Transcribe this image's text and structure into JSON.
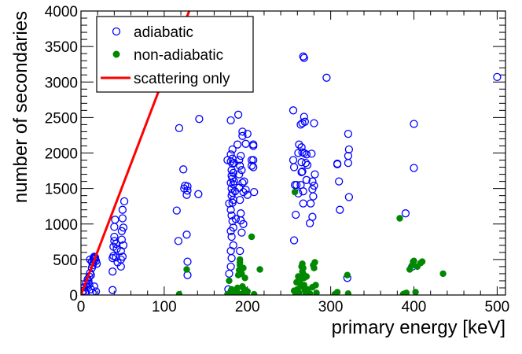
{
  "chart_data": {
    "type": "scatter",
    "xlabel": "primary energy [keV]",
    "ylabel": "number of secondaries",
    "xlim": [
      0,
      510
    ],
    "ylim": [
      0,
      4000
    ],
    "x_major_ticks": [
      0,
      100,
      200,
      300,
      400,
      500
    ],
    "y_major_ticks": [
      0,
      500,
      1000,
      1500,
      2000,
      2500,
      3000,
      3500,
      4000
    ],
    "x_tick_labels": [
      "0",
      "100",
      "200",
      "300",
      "400",
      "500"
    ],
    "y_tick_labels": [
      "0",
      "500",
      "1000",
      "1500",
      "2000",
      "2500",
      "3000",
      "3500",
      "4000"
    ],
    "legend": {
      "position": "top-left",
      "entries": [
        {
          "label": "adiabatic",
          "marker": "open-circle",
          "color": "#0000ff"
        },
        {
          "label": "non-adiabatic",
          "marker": "filled-circle",
          "color": "#008800"
        },
        {
          "label": "scattering only",
          "marker": "line",
          "color": "#ff0000"
        }
      ]
    },
    "series": [
      {
        "name": "adiabatic",
        "color": "#0000ff",
        "marker": "open-circle",
        "points": [
          [
            2,
            20
          ],
          [
            3,
            60
          ],
          [
            4,
            110
          ],
          [
            5,
            40
          ],
          [
            6,
            160
          ],
          [
            7,
            120
          ],
          [
            8,
            220
          ],
          [
            9,
            200
          ],
          [
            10,
            260
          ],
          [
            11,
            310
          ],
          [
            12,
            280
          ],
          [
            13,
            380
          ],
          [
            14,
            420
          ],
          [
            15,
            460
          ],
          [
            16,
            500
          ],
          [
            17,
            530
          ],
          [
            18,
            480
          ],
          [
            12,
            80
          ],
          [
            14,
            30
          ],
          [
            16,
            120
          ],
          [
            18,
            50
          ],
          [
            11,
            500
          ],
          [
            13,
            470
          ],
          [
            15,
            520
          ],
          [
            16,
            540
          ],
          [
            17,
            510
          ],
          [
            19,
            440
          ],
          [
            10,
            150
          ],
          [
            38,
            70
          ],
          [
            38,
            330
          ],
          [
            38,
            520
          ],
          [
            39,
            550
          ],
          [
            39,
            680
          ],
          [
            40,
            760
          ],
          [
            40,
            820
          ],
          [
            40,
            960
          ],
          [
            41,
            1060
          ],
          [
            42,
            530
          ],
          [
            42,
            720
          ],
          [
            43,
            650
          ],
          [
            44,
            460
          ],
          [
            48,
            400
          ],
          [
            48,
            500
          ],
          [
            48,
            620
          ],
          [
            49,
            780
          ],
          [
            49,
            900
          ],
          [
            50,
            1080
          ],
          [
            50,
            1200
          ],
          [
            50,
            540
          ],
          [
            51,
            700
          ],
          [
            51,
            950
          ],
          [
            52,
            1320
          ],
          [
            115,
            1190
          ],
          [
            117,
            760
          ],
          [
            118,
            2350
          ],
          [
            123,
            1770
          ],
          [
            124,
            1500
          ],
          [
            125,
            1540
          ],
          [
            127,
            850
          ],
          [
            127,
            1410
          ],
          [
            128,
            1470
          ],
          [
            128,
            470
          ],
          [
            128,
            1530
          ],
          [
            128,
            280
          ],
          [
            141,
            1420
          ],
          [
            142,
            2480
          ],
          [
            176,
            1900
          ],
          [
            177,
            80
          ],
          [
            178,
            1290
          ],
          [
            178,
            300
          ],
          [
            180,
            2460
          ],
          [
            180,
            1980
          ],
          [
            180,
            1880
          ],
          [
            180,
            1580
          ],
          [
            180,
            1200
          ],
          [
            180,
            900
          ],
          [
            180,
            620
          ],
          [
            180,
            400
          ],
          [
            181,
            1760
          ],
          [
            181,
            1680
          ],
          [
            181,
            1500
          ],
          [
            181,
            1400
          ],
          [
            181,
            1120
          ],
          [
            181,
            820
          ],
          [
            181,
            520
          ],
          [
            181,
            50
          ],
          [
            182,
            2050
          ],
          [
            182,
            1920
          ],
          [
            182,
            1850
          ],
          [
            182,
            1640
          ],
          [
            182,
            1440
          ],
          [
            182,
            1300
          ],
          [
            182,
            1040
          ],
          [
            183,
            1720
          ],
          [
            183,
            1560
          ],
          [
            183,
            1340
          ],
          [
            183,
            950
          ],
          [
            183,
            700
          ],
          [
            184,
            1860
          ],
          [
            184,
            1600
          ],
          [
            185,
            1460
          ],
          [
            186,
            1070
          ],
          [
            188,
            2120
          ],
          [
            189,
            2540
          ],
          [
            190,
            1900
          ],
          [
            190,
            1700
          ],
          [
            190,
            1510
          ],
          [
            191,
            1820
          ],
          [
            191,
            1340
          ],
          [
            191,
            620
          ],
          [
            192,
            1960
          ],
          [
            192,
            1150
          ],
          [
            192,
            1050
          ],
          [
            193,
            1760
          ],
          [
            193,
            880
          ],
          [
            194,
            2240
          ],
          [
            194,
            2300
          ],
          [
            194,
            1580
          ],
          [
            195,
            1450
          ],
          [
            195,
            1000
          ],
          [
            196,
            1600
          ],
          [
            198,
            2130
          ],
          [
            198,
            1480
          ],
          [
            200,
            2270
          ],
          [
            200,
            1410
          ],
          [
            205,
            1900
          ],
          [
            205,
            1820
          ],
          [
            207,
            2120
          ],
          [
            207,
            2100
          ],
          [
            207,
            1900
          ],
          [
            207,
            1800
          ],
          [
            208,
            1450
          ],
          [
            255,
            2600
          ],
          [
            255,
            1900
          ],
          [
            256,
            1800
          ],
          [
            256,
            770
          ],
          [
            257,
            1550
          ],
          [
            258,
            1130
          ],
          [
            259,
            1550
          ],
          [
            261,
            2000
          ],
          [
            261,
            1430
          ],
          [
            262,
            2120
          ],
          [
            264,
            1550
          ],
          [
            264,
            2400
          ],
          [
            265,
            1870
          ],
          [
            265,
            2080
          ],
          [
            265,
            1730
          ],
          [
            266,
            2420
          ],
          [
            266,
            2010
          ],
          [
            266,
            1740
          ],
          [
            267,
            1460
          ],
          [
            267,
            1290
          ],
          [
            267,
            3360
          ],
          [
            268,
            3340
          ],
          [
            268,
            2510
          ],
          [
            268,
            2000
          ],
          [
            269,
            2440
          ],
          [
            270,
            1860
          ],
          [
            271,
            1980
          ],
          [
            271,
            1620
          ],
          [
            272,
            1830
          ],
          [
            275,
            1010
          ],
          [
            276,
            1290
          ],
          [
            277,
            1990
          ],
          [
            278,
            1600
          ],
          [
            278,
            1490
          ],
          [
            278,
            1100
          ],
          [
            279,
            1390
          ],
          [
            280,
            2420
          ],
          [
            280,
            1540
          ],
          [
            281,
            1700
          ],
          [
            295,
            3060
          ],
          [
            308,
            1850
          ],
          [
            308,
            1840
          ],
          [
            310,
            1600
          ],
          [
            311,
            1200
          ],
          [
            320,
            240
          ],
          [
            321,
            2270
          ],
          [
            321,
            1960
          ],
          [
            321,
            1860
          ],
          [
            322,
            2050
          ],
          [
            322,
            1380
          ],
          [
            390,
            1150
          ],
          [
            398,
            400
          ],
          [
            400,
            2410
          ],
          [
            400,
            1790
          ],
          [
            500,
            3070
          ]
        ]
      },
      {
        "name": "non-adiabatic",
        "color": "#008800",
        "marker": "filled-circle",
        "points": [
          [
            118,
            10
          ],
          [
            127,
            360
          ],
          [
            176,
            10
          ],
          [
            178,
            200
          ],
          [
            180,
            20
          ],
          [
            181,
            80
          ],
          [
            182,
            10
          ],
          [
            183,
            50
          ],
          [
            184,
            30
          ],
          [
            186,
            10
          ],
          [
            187,
            60
          ],
          [
            188,
            100
          ],
          [
            189,
            280
          ],
          [
            190,
            350
          ],
          [
            191,
            420
          ],
          [
            191,
            330
          ],
          [
            191,
            500
          ],
          [
            191,
            460
          ],
          [
            192,
            10
          ],
          [
            193,
            300
          ],
          [
            194,
            120
          ],
          [
            195,
            380
          ],
          [
            196,
            80
          ],
          [
            197,
            240
          ],
          [
            198,
            60
          ],
          [
            199,
            20
          ],
          [
            200,
            50
          ],
          [
            205,
            820
          ],
          [
            208,
            10
          ],
          [
            215,
            360
          ],
          [
            256,
            60
          ],
          [
            257,
            1450
          ],
          [
            258,
            10
          ],
          [
            259,
            180
          ],
          [
            260,
            80
          ],
          [
            261,
            260
          ],
          [
            262,
            30
          ],
          [
            263,
            200
          ],
          [
            264,
            120
          ],
          [
            265,
            400
          ],
          [
            266,
            330
          ],
          [
            266,
            440
          ],
          [
            267,
            380
          ],
          [
            267,
            300
          ],
          [
            268,
            240
          ],
          [
            268,
            140
          ],
          [
            269,
            70
          ],
          [
            270,
            20
          ],
          [
            271,
            260
          ],
          [
            272,
            80
          ],
          [
            275,
            20
          ],
          [
            278,
            110
          ],
          [
            279,
            420
          ],
          [
            280,
            380
          ],
          [
            281,
            460
          ],
          [
            282,
            140
          ],
          [
            283,
            30
          ],
          [
            305,
            10
          ],
          [
            308,
            40
          ],
          [
            320,
            280
          ],
          [
            321,
            20
          ],
          [
            383,
            1080
          ],
          [
            387,
            10
          ],
          [
            389,
            20
          ],
          [
            391,
            30
          ],
          [
            395,
            360
          ],
          [
            398,
            420
          ],
          [
            399,
            470
          ],
          [
            400,
            480
          ],
          [
            402,
            40
          ],
          [
            404,
            400
          ],
          [
            408,
            450
          ],
          [
            410,
            470
          ],
          [
            435,
            300
          ]
        ]
      },
      {
        "name": "scattering only",
        "color": "#ff0000",
        "type": "line",
        "points": [
          [
            0,
            0
          ],
          [
            130,
            4000
          ]
        ]
      }
    ]
  }
}
